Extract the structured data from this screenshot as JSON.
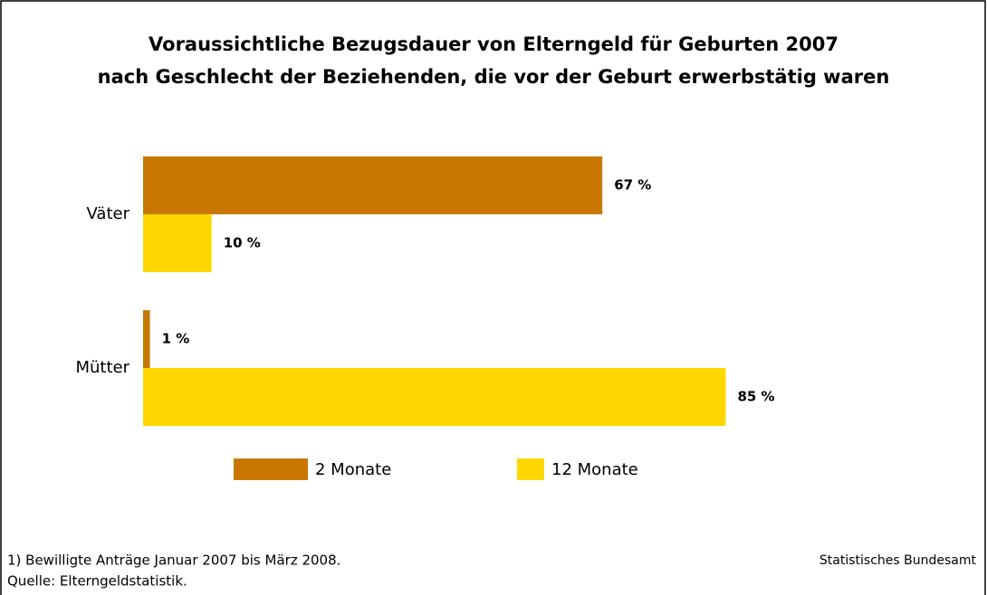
{
  "chart_data": {
    "type": "hbar",
    "title": [
      "Voraussichtliche Bezugsdauer von Elterngeld für Geburten 2007",
      "nach Geschlecht der Beziehenden, die vor der Geburt erwerbstätig waren"
    ],
    "categories": [
      "Väter",
      "Mütter"
    ],
    "series": [
      {
        "name": "2 Monate",
        "color": "#c87800",
        "values": [
          67,
          1
        ],
        "value_labels": [
          "67 %",
          "1 %"
        ]
      },
      {
        "name": "12 Monate",
        "color": "#ffd700",
        "values": [
          10,
          85
        ],
        "value_labels": [
          "10 %",
          "85 %"
        ]
      }
    ],
    "notes": [
      "1) Bewilligte Anträge Januar 2007 bis März 2008.",
      "Quelle: Elterngeldstatistik."
    ],
    "source": "Statistisches Bundesamt"
  }
}
